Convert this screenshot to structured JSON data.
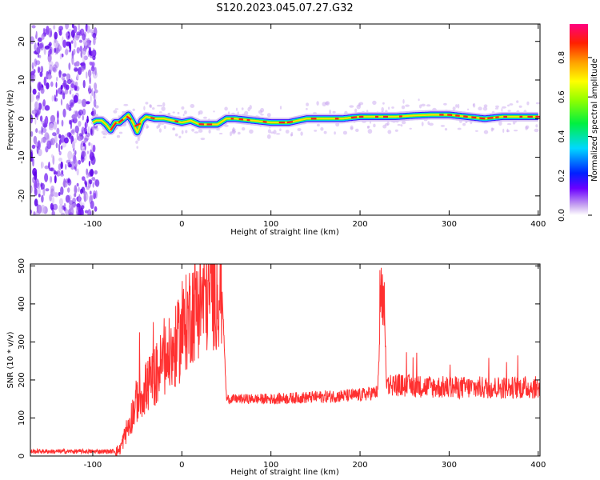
{
  "figure": {
    "title": "S120.2023.045.07.27.G32"
  },
  "chart_data": [
    {
      "type": "heatmap",
      "title": "S120.2023.045.07.27.G32",
      "xlabel": "Height of straight line (km)",
      "ylabel": "Frequency (Hz)",
      "xlim": [
        -170,
        402
      ],
      "ylim": [
        -25,
        24.5
      ],
      "xticks": [
        "-100",
        "0",
        "100",
        "200",
        "300",
        "400"
      ],
      "yticks": [
        "20",
        "10",
        "0",
        "-10",
        "-20"
      ],
      "noise_region_x": [
        -170,
        -95
      ],
      "ridge": {
        "x": [
          -100,
          -96,
          -90,
          -85,
          -80,
          -75,
          -70,
          -65,
          -60,
          -55,
          -50,
          -45,
          -40,
          -30,
          -20,
          -10,
          0,
          10,
          20,
          30,
          40,
          50,
          60,
          80,
          100,
          120,
          140,
          160,
          180,
          200,
          220,
          240,
          260,
          280,
          300,
          320,
          340,
          360,
          380,
          400
        ],
        "freq": [
          -1,
          -0.5,
          -0.5,
          -1.5,
          -3,
          -1,
          -1,
          0,
          1,
          -1,
          -3.5,
          -0.5,
          0.5,
          0,
          0,
          -0.5,
          -1,
          -0.5,
          -1.5,
          -1.5,
          -1.5,
          0,
          0,
          -0.5,
          -1,
          -1,
          0,
          0,
          0,
          0.5,
          0.5,
          0.5,
          0.8,
          1,
          1,
          0.5,
          0,
          0.5,
          0.5,
          0.5
        ]
      },
      "colorbar": {
        "label": "Normalized spectral amplitude",
        "ticks": [
          "0.0",
          "0.2",
          "0.4",
          "0.6",
          "0.8"
        ],
        "range": [
          0,
          0.97
        ]
      }
    },
    {
      "type": "line",
      "xlabel": "Height of straight line (km)",
      "ylabel": "SNR (10 * v/v)",
      "xlim": [
        -170,
        402
      ],
      "ylim": [
        0,
        505
      ],
      "xticks": [
        "-100",
        "0",
        "100",
        "200",
        "300",
        "400"
      ],
      "yticks": [
        "500",
        "400",
        "300",
        "200",
        "100",
        "0"
      ],
      "series_color": "#ff3030",
      "series": [
        {
          "x": [
            -170,
            -120,
            -80,
            -70,
            -60,
            -50,
            -40,
            -30,
            -20,
            -10,
            0,
            10,
            20,
            30,
            40,
            45,
            50,
            100,
            150,
            200,
            220,
            225,
            230,
            250,
            300,
            350,
            400
          ],
          "values": [
            12,
            12,
            12,
            15,
            80,
            150,
            180,
            210,
            250,
            270,
            320,
            380,
            410,
            430,
            445,
            445,
            150,
            150,
            155,
            160,
            168,
            505,
            190,
            185,
            180,
            180,
            180
          ]
        }
      ]
    }
  ]
}
